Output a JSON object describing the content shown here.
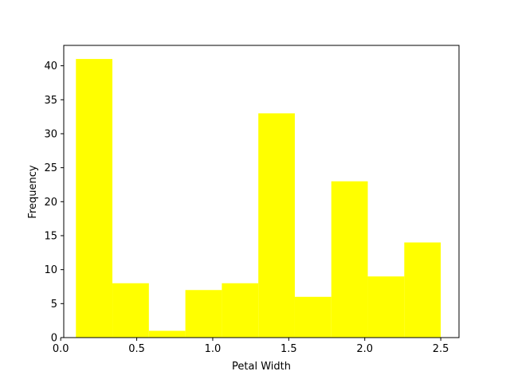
{
  "chart_data": {
    "type": "bar",
    "kind": "histogram",
    "xlabel": "Petal Width",
    "ylabel": "Frequency",
    "xlim": [
      0.02,
      2.62
    ],
    "ylim": [
      0,
      43
    ],
    "bar_color": "#ffff00",
    "grid": false,
    "bins": [
      {
        "start": 0.1,
        "end": 0.34,
        "count": 41
      },
      {
        "start": 0.34,
        "end": 0.58,
        "count": 8
      },
      {
        "start": 0.58,
        "end": 0.82,
        "count": 1
      },
      {
        "start": 0.82,
        "end": 1.06,
        "count": 7
      },
      {
        "start": 1.06,
        "end": 1.3,
        "count": 8
      },
      {
        "start": 1.3,
        "end": 1.54,
        "count": 33
      },
      {
        "start": 1.54,
        "end": 1.78,
        "count": 6
      },
      {
        "start": 1.78,
        "end": 2.02,
        "count": 23
      },
      {
        "start": 2.02,
        "end": 2.26,
        "count": 9
      },
      {
        "start": 2.26,
        "end": 2.5,
        "count": 14
      }
    ],
    "x_ticks": [
      {
        "value": 0.0,
        "label": "0.0"
      },
      {
        "value": 0.5,
        "label": "0.5"
      },
      {
        "value": 1.0,
        "label": "1.0"
      },
      {
        "value": 1.5,
        "label": "1.5"
      },
      {
        "value": 2.0,
        "label": "2.0"
      },
      {
        "value": 2.5,
        "label": "2.5"
      }
    ],
    "y_ticks": [
      {
        "value": 0,
        "label": "0"
      },
      {
        "value": 5,
        "label": "5"
      },
      {
        "value": 10,
        "label": "10"
      },
      {
        "value": 15,
        "label": "15"
      },
      {
        "value": 20,
        "label": "20"
      },
      {
        "value": 25,
        "label": "25"
      },
      {
        "value": 30,
        "label": "30"
      },
      {
        "value": 35,
        "label": "35"
      },
      {
        "value": 40,
        "label": "40"
      }
    ]
  }
}
